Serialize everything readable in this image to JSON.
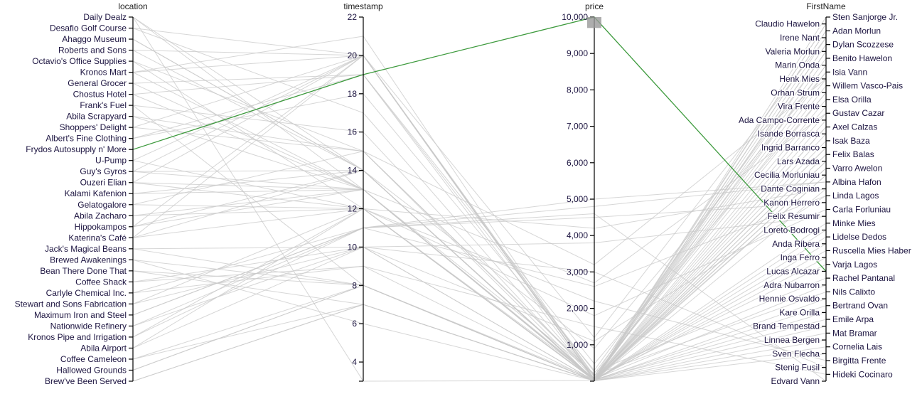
{
  "chart_data": {
    "type": "parallel-coordinates",
    "dimensions": [
      {
        "key": "location",
        "label": "location",
        "scale": "ordinal"
      },
      {
        "key": "timestamp",
        "label": "timestamp",
        "scale": "linear",
        "range": [
          3,
          22
        ],
        "ticks": [
          "22",
          "20",
          "18",
          "16",
          "14",
          "12",
          "10",
          "8",
          "6",
          "4"
        ]
      },
      {
        "key": "price",
        "label": "price",
        "scale": "linear",
        "range": [
          0,
          10000
        ],
        "ticks": [
          "10,000",
          "9,000",
          "8,000",
          "7,000",
          "6,000",
          "5,000",
          "4,000",
          "3,000",
          "2,000",
          "1,000"
        ]
      },
      {
        "key": "FirstName",
        "label": "FirstName",
        "scale": "ordinal"
      }
    ],
    "locations": [
      "Daily Dealz",
      "Desafio Golf Course",
      "Ahaggo Museum",
      "Roberts and Sons",
      "Octavio's Office Supplies",
      "Kronos Mart",
      "General Grocer",
      "Chostus Hotel",
      "Frank's Fuel",
      "Abila Scrapyard",
      "Shoppers' Delight",
      "Albert's Fine Clothing",
      "Frydos Autosupply n' More",
      "U-Pump",
      "Guy's Gyros",
      "Ouzeri Elian",
      "Kalami Kafenion",
      "Gelatogalore",
      "Abila Zacharo",
      "Hippokampos",
      "Katerina's Café",
      "Jack's Magical Beans",
      "Brewed Awakenings",
      "Bean There Done That",
      "Coffee Shack",
      "Carlyle Chemical Inc.",
      "Stewart and Sons Fabrication",
      "Maximum Iron and Steel",
      "Nationwide Refinery",
      "Kronos Pipe and Irrigation",
      "Abila Airport",
      "Coffee Cameleon",
      "Hallowed Grounds",
      "Brew've Been Served"
    ],
    "first_names": [
      "Sten Sanjorge Jr.",
      "Claudio Hawelon",
      "Adan Morlun",
      "Irene Nant",
      "Dylan Scozzese",
      "Valeria Morlun",
      "Benito Hawelon",
      "Marin Onda",
      "Isia Vann",
      "Henk Mies",
      "Willem Vasco-Pais",
      "Orhan Strum",
      "Elsa Orilla",
      "Vira Frente",
      "Gustav Cazar",
      "Ada Campo-Corrente",
      "Axel Calzas",
      "Isande Borrasca",
      "Isak Baza",
      "Ingrid Barranco",
      "Felix Balas",
      "Lars Azada",
      "Varro Awelon",
      "Cecilia Morluniau",
      "Albina Hafon",
      "Dante Coginian",
      "Linda Lagos",
      "Kanon Herrero",
      "Carla Forluniau",
      "Felix Resumir",
      "Minke Mies",
      "Loreto Bodrogi",
      "Lidelse Dedos",
      "Anda Ribera",
      "Ruscella Mies Haber",
      "Inga Ferro",
      "Varja Lagos",
      "Lucas Alcazar",
      "Rachel Pantanal",
      "Adra Nubarron",
      "Nils Calixto",
      "Hennie Osvaldo",
      "Bertrand Ovan",
      "Kare Orilla",
      "Emile Arpa",
      "Brand Tempestad",
      "Mat Bramar",
      "Linnea Bergen",
      "Cornelia Lais",
      "Sven Flecha",
      "Birgitta Frente",
      "Stenig Fusil",
      "Hideki Cocinaro",
      "Edvard Vann"
    ],
    "highlighted": {
      "location": "Frydos Autosupply n' More",
      "timestamp": 19,
      "price": 10000,
      "FirstName": "Lucas Alcazar",
      "color": "#3d9a3d"
    },
    "brush": {
      "dimension": "price",
      "range": [
        9700,
        10000
      ]
    },
    "line_color": "#c8c8c8",
    "records": [
      [
        "Daily Dealz",
        13,
        25,
        "Sten Sanjorge Jr."
      ],
      [
        "Desafio Golf Course",
        20,
        120,
        "Claudio Hawelon"
      ],
      [
        "Ahaggo Museum",
        14,
        45,
        "Adan Morlun"
      ],
      [
        "Roberts and Sons",
        20,
        1200,
        "Irene Nant"
      ],
      [
        "Octavio's Office Supplies",
        12,
        85,
        "Dylan Scozzese"
      ],
      [
        "Kronos Mart",
        21,
        60,
        "Valeria Morlun"
      ],
      [
        "General Grocer",
        19,
        30,
        "Benito Hawelon"
      ],
      [
        "Chostus Hotel",
        13,
        210,
        "Marin Onda"
      ],
      [
        "Frank's Fuel",
        8,
        55,
        "Isia Vann"
      ],
      [
        "Abila Scrapyard",
        15,
        3200,
        "Henk Mies"
      ],
      [
        "Shoppers' Delight",
        20,
        150,
        "Willem Vasco-Pais"
      ],
      [
        "Albert's Fine Clothing",
        19,
        480,
        "Orhan Strum"
      ],
      [
        "U-Pump",
        12,
        40,
        "Elsa Orilla"
      ],
      [
        "Guy's Gyros",
        20,
        35,
        "Vira Frente"
      ],
      [
        "Ouzeri Elian",
        13,
        28,
        "Gustav Cazar"
      ],
      [
        "Kalami Kafenion",
        14,
        22,
        "Ada Campo-Corrente"
      ],
      [
        "Gelatogalore",
        12,
        18,
        "Axel Calzas"
      ],
      [
        "Abila Zacharo",
        13,
        30,
        "Isande Borrasca"
      ],
      [
        "Hippokampos",
        20,
        40,
        "Isak Baza"
      ],
      [
        "Katerina's Café",
        20,
        55,
        "Ingrid Barranco"
      ],
      [
        "Jack's Magical Beans",
        8,
        12,
        "Felix Balas"
      ],
      [
        "Brewed Awakenings",
        8,
        14,
        "Lars Azada"
      ],
      [
        "Bean There Done That",
        7,
        10,
        "Varro Awelon"
      ],
      [
        "Coffee Shack",
        10,
        12,
        "Cecilia Morluniau"
      ],
      [
        "Carlyle Chemical Inc.",
        11,
        4800,
        "Albina Hafon"
      ],
      [
        "Stewart and Sons Fabrication",
        12,
        4200,
        "Dante Coginian"
      ],
      [
        "Maximum Iron and Steel",
        11,
        2600,
        "Linda Lagos"
      ],
      [
        "Nationwide Refinery",
        11,
        4500,
        "Kanon Herrero"
      ],
      [
        "Kronos Pipe and Irrigation",
        12,
        1800,
        "Carla Forluniau"
      ],
      [
        "Abila Airport",
        10,
        3800,
        "Felix Resumir"
      ],
      [
        "Coffee Cameleon",
        8,
        15,
        "Minke Mies"
      ],
      [
        "Hallowed Grounds",
        8,
        11,
        "Loreto Bodrogi"
      ],
      [
        "Brew've Been Served",
        7,
        13,
        "Lidelse Dedos"
      ],
      [
        "Daily Dealz",
        3,
        20,
        "Anda Ribera"
      ],
      [
        "Ahaggo Museum",
        14,
        50,
        "Ruscella Mies Haber"
      ],
      [
        "Kronos Mart",
        20,
        35,
        "Inga Ferro"
      ],
      [
        "General Grocer",
        13,
        70,
        "Varja Lagos"
      ],
      [
        "Chostus Hotel",
        19,
        260,
        "Rachel Pantanal"
      ],
      [
        "Frank's Fuel",
        16,
        60,
        "Adra Nubarron"
      ],
      [
        "Shoppers' Delight",
        15,
        180,
        "Nils Calixto"
      ],
      [
        "Guy's Gyros",
        13,
        25,
        "Hennie Osvaldo"
      ],
      [
        "Ouzeri Elian",
        20,
        40,
        "Bertrand Ovan"
      ],
      [
        "Kalami Kafenion",
        13,
        30,
        "Kare Orilla"
      ],
      [
        "Hippokampos",
        14,
        45,
        "Emile Arpa"
      ],
      [
        "Katerina's Café",
        12,
        28,
        "Brand Tempestad"
      ],
      [
        "Brewed Awakenings",
        6,
        12,
        "Mat Bramar"
      ],
      [
        "Coffee Shack",
        9,
        10,
        "Linnea Bergen"
      ],
      [
        "Hallowed Grounds",
        8,
        14,
        "Cornelia Lais"
      ],
      [
        "Brew've Been Served",
        7,
        12,
        "Sven Flecha"
      ],
      [
        "Abila Airport",
        12,
        2200,
        "Birgitta Frente"
      ],
      [
        "Nationwide Refinery",
        10,
        3000,
        "Stenig Fusil"
      ],
      [
        "Carlyle Chemical Inc.",
        9,
        1500,
        "Hideki Cocinaro"
      ],
      [
        "Maximum Iron and Steel",
        11,
        4600,
        "Edvard Vann"
      ],
      [
        "Desafio Golf Course",
        17,
        90,
        "Henk Mies"
      ],
      [
        "Octavio's Office Supplies",
        15,
        150,
        "Orhan Strum"
      ],
      [
        "Roberts and Sons",
        14,
        900,
        "Isia Vann"
      ],
      [
        "Albert's Fine Clothing",
        18,
        300,
        "Valeria Morlun"
      ],
      [
        "U-Pump",
        20,
        55,
        "Claudio Hawelon"
      ],
      [
        "Gelatogalore",
        15,
        20,
        "Marin Onda"
      ],
      [
        "Abila Zacharo",
        12,
        25,
        "Dylan Scozzese"
      ],
      [
        "Jack's Magical Beans",
        10,
        10,
        "Adan Morlun"
      ],
      [
        "Bean There Done That",
        8,
        11,
        "Felix Balas"
      ],
      [
        "Coffee Cameleon",
        7,
        13,
        "Dante Coginian"
      ],
      [
        "Kronos Pipe and Irrigation",
        11,
        5000,
        "Albina Hafon"
      ],
      [
        "Stewart and Sons Fabrication",
        10,
        1100,
        "Linda Lagos"
      ],
      [
        "Abila Scrapyard",
        13,
        2700,
        "Gustav Cazar"
      ],
      [
        "Daily Dealz",
        14,
        40,
        "Irene Nant"
      ],
      [
        "Kronos Mart",
        13,
        22,
        "Axel Calzas"
      ],
      [
        "Guy's Gyros",
        14,
        35,
        "Lars Azada"
      ],
      [
        "Hippokampos",
        13,
        50,
        "Cecilia Morluniau"
      ],
      [
        "Katerina's Café",
        14,
        30,
        "Varro Awelon"
      ],
      [
        "Ouzeri Elian",
        12,
        25,
        "Ingrid Barranco"
      ]
    ]
  }
}
